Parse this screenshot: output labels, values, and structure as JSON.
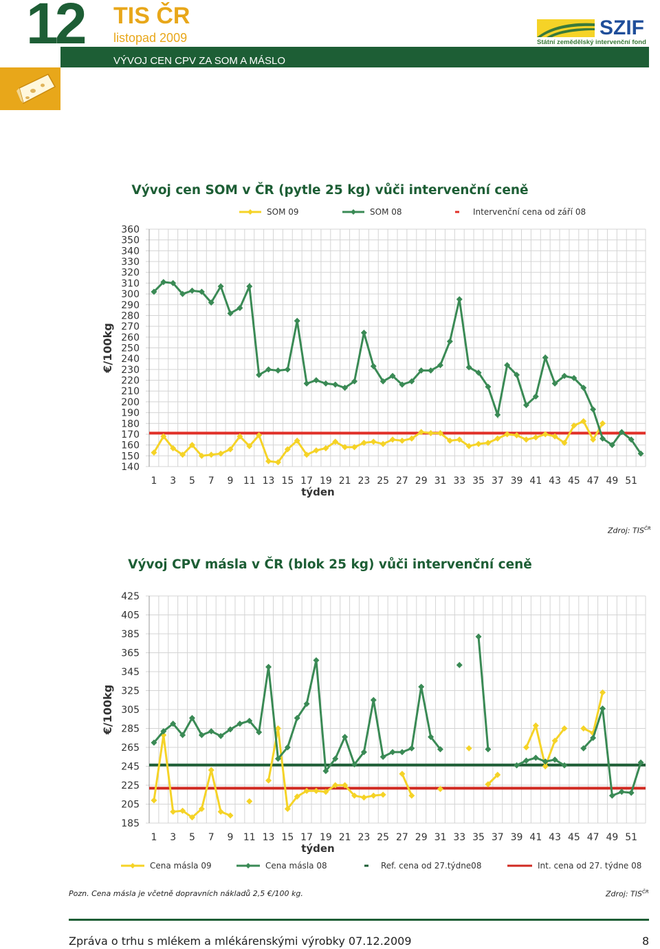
{
  "header": {
    "issue_number": "12",
    "publication": "TIS ČR",
    "issue_date": "listopad 2009",
    "section_title": "VÝVOJ CEN CPV ZA SOM A MÁSLO",
    "logo_name": "SZIF",
    "logo_subtitle": "Státní zemědělský intervenční fond",
    "colors": {
      "green": "#1d5e35",
      "orange": "#e8a71a",
      "blue": "#1f4e9a"
    }
  },
  "chart1": {
    "source_label": "Zdroj: TIS",
    "source_sup": "ČR"
  },
  "chart2": {
    "source_label": "Zdroj: TIS",
    "source_sup": "ČR"
  },
  "chart_data": [
    {
      "type": "line",
      "title": "Vývoj cen SOM v ČR (pytle 25 kg) vůči intervenční ceně",
      "xlabel": "týden",
      "ylabel": "€/100kg",
      "ylim": [
        140,
        360
      ],
      "yticks": [
        140,
        150,
        160,
        170,
        180,
        190,
        200,
        210,
        220,
        230,
        240,
        250,
        260,
        270,
        280,
        290,
        300,
        310,
        320,
        330,
        340,
        350,
        360
      ],
      "x": [
        1,
        2,
        3,
        4,
        5,
        6,
        7,
        8,
        9,
        10,
        11,
        12,
        13,
        14,
        15,
        16,
        17,
        18,
        19,
        20,
        21,
        22,
        23,
        24,
        25,
        26,
        27,
        28,
        29,
        30,
        31,
        32,
        33,
        34,
        35,
        36,
        37,
        38,
        39,
        40,
        41,
        42,
        43,
        44,
        45,
        46,
        47,
        48,
        49,
        50,
        51,
        52
      ],
      "xticks": [
        1,
        3,
        5,
        7,
        9,
        11,
        13,
        15,
        17,
        19,
        21,
        23,
        25,
        27,
        29,
        31,
        33,
        35,
        37,
        39,
        41,
        43,
        45,
        47,
        49,
        51
      ],
      "grid": true,
      "legend": "top",
      "series": [
        {
          "name": "SOM 09",
          "color": "#f5d327",
          "values": [
            153,
            168,
            157,
            151,
            160,
            150,
            151,
            152,
            156,
            168,
            159,
            169,
            145,
            144,
            156,
            164,
            151,
            155,
            157,
            163,
            158,
            158,
            162,
            163,
            161,
            165,
            164,
            166,
            172,
            171,
            171,
            164,
            165,
            159,
            161,
            162,
            166,
            170,
            169,
            165,
            167,
            170,
            168,
            162,
            178,
            182,
            165,
            180,
            null,
            null,
            null,
            null
          ]
        },
        {
          "name": "SOM 08",
          "color": "#3a8a55",
          "values": [
            302,
            311,
            310,
            300,
            303,
            302,
            292,
            307,
            282,
            287,
            307,
            225,
            230,
            229,
            230,
            275,
            217,
            220,
            217,
            216,
            213,
            219,
            264,
            233,
            219,
            224,
            216,
            219,
            229,
            229,
            234,
            256,
            295,
            232,
            227,
            214,
            188,
            234,
            225,
            197,
            205,
            241,
            217,
            224,
            222,
            213,
            193,
            166,
            160,
            172,
            165,
            152
          ]
        },
        {
          "name": "Intervenční cena od září 08",
          "color": "#e03028",
          "style": "hline",
          "value": 171
        }
      ]
    },
    {
      "type": "line",
      "title": "Vývoj CPV másla v ČR (blok 25 kg) vůči intervenční ceně",
      "xlabel": "týden",
      "ylabel": "€/100kg",
      "ylim": [
        185,
        425
      ],
      "yticks": [
        185,
        205,
        225,
        245,
        265,
        285,
        305,
        325,
        345,
        365,
        385,
        405,
        425
      ],
      "x": [
        1,
        2,
        3,
        4,
        5,
        6,
        7,
        8,
        9,
        10,
        11,
        12,
        13,
        14,
        15,
        16,
        17,
        18,
        19,
        20,
        21,
        22,
        23,
        24,
        25,
        26,
        27,
        28,
        29,
        30,
        31,
        32,
        33,
        34,
        35,
        36,
        37,
        38,
        39,
        40,
        41,
        42,
        43,
        44,
        45,
        46,
        47,
        48,
        49,
        50,
        51,
        52
      ],
      "xticks": [
        1,
        3,
        5,
        7,
        9,
        11,
        13,
        15,
        17,
        19,
        21,
        23,
        25,
        27,
        29,
        31,
        33,
        35,
        37,
        39,
        41,
        43,
        45,
        47,
        49,
        51
      ],
      "grid": true,
      "legend": "bottom",
      "series": [
        {
          "name": "Cena másla 09",
          "color": "#f5d327",
          "values": [
            209,
            278,
            197,
            198,
            191,
            200,
            241,
            197,
            193,
            null,
            208,
            null,
            230,
            285,
            200,
            213,
            219,
            219,
            218,
            225,
            225,
            214,
            212,
            214,
            215,
            null,
            237,
            214,
            null,
            null,
            221,
            null,
            null,
            264,
            null,
            226,
            236,
            null,
            null,
            265,
            288,
            245,
            272,
            285,
            null,
            285,
            280,
            323,
            null,
            null,
            null,
            null
          ]
        },
        {
          "name": "Cena másla 08",
          "color": "#3a8a55",
          "values": [
            270,
            282,
            290,
            278,
            296,
            278,
            282,
            277,
            284,
            290,
            293,
            281,
            350,
            253,
            265,
            296,
            311,
            357,
            240,
            253,
            276,
            247,
            260,
            315,
            255,
            260,
            260,
            264,
            329,
            276,
            263,
            null,
            352,
            null,
            382,
            263,
            null,
            null,
            246,
            251,
            254,
            250,
            252,
            246,
            null,
            264,
            275,
            306,
            214,
            218,
            217,
            249
          ]
        },
        {
          "name": "Ref. cena od 27.týdne08",
          "color": "#1d5e35",
          "style": "hline",
          "value": 246.4
        },
        {
          "name": "Int. cena od 27. týdne 08",
          "color": "#d02a22",
          "style": "hline",
          "value": 221.8
        }
      ]
    }
  ],
  "note": "Pozn. Cena másla je včetně dopravních nákladů 2,5 €/100 kg.",
  "footer": {
    "text": "Zpráva o trhu s mlékem a mlékárenskými výrobky 07.12.2009",
    "page_number": "8"
  }
}
